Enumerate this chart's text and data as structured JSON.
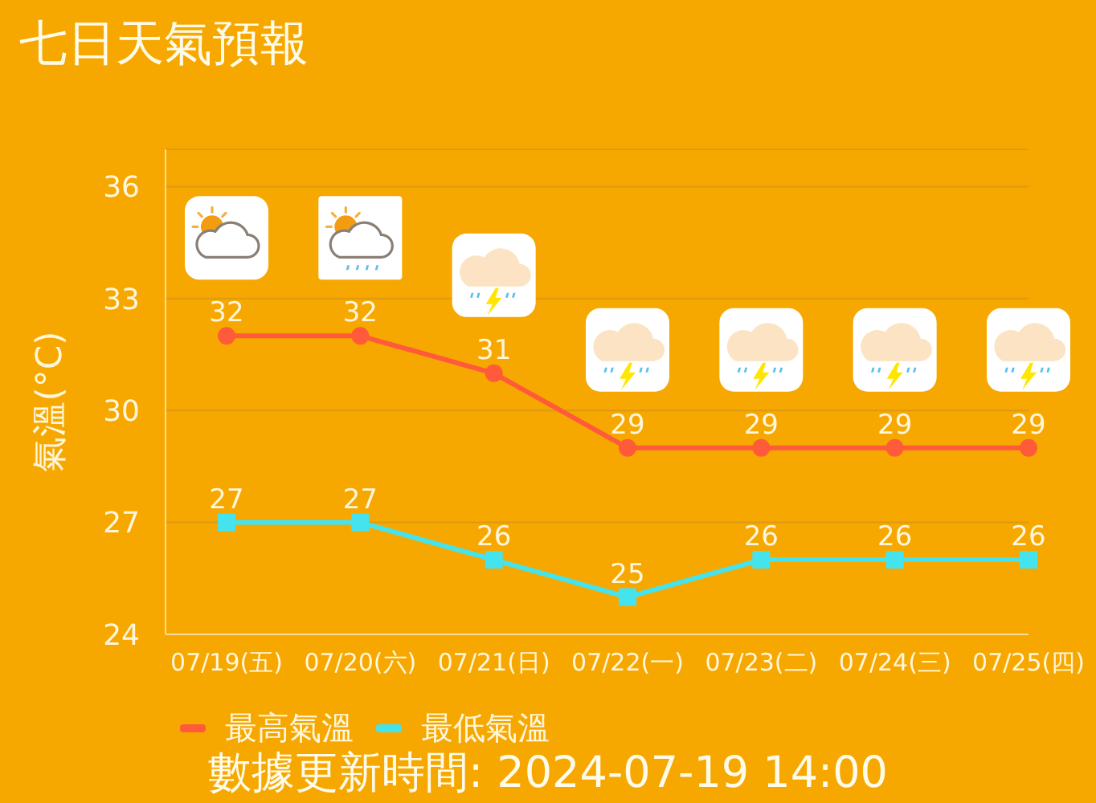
{
  "chart_data": {
    "type": "line",
    "title": "七日天氣預報",
    "ylabel": "氣溫(°C)",
    "categories": [
      "07/19(五)",
      "07/20(六)",
      "07/21(日)",
      "07/22(一)",
      "07/23(二)",
      "07/24(三)",
      "07/25(四)"
    ],
    "series": [
      {
        "name": "最高氣溫",
        "color": "#ff5a3a",
        "marker": "circle",
        "values": [
          32,
          32,
          31,
          29,
          29,
          29,
          29
        ]
      },
      {
        "name": "最低氣溫",
        "color": "#45e3ee",
        "marker": "square",
        "values": [
          27,
          27,
          26,
          25,
          26,
          26,
          26
        ]
      }
    ],
    "ylim": [
      24,
      37
    ],
    "yticks": [
      24,
      27,
      30,
      33,
      36
    ],
    "grid": "y",
    "legend": "bottom",
    "data_labels": true,
    "annotations": [
      "數據更新時間: 2024-07-19 14:00"
    ]
  }
}
